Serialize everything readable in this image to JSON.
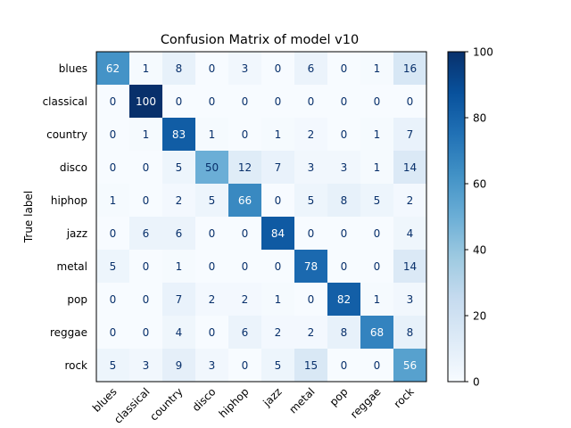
{
  "chart_data": {
    "type": "heatmap",
    "title": "Confusion Matrix of model v10",
    "ylabel": "True label",
    "xlabel": "",
    "categories": [
      "blues",
      "classical",
      "country",
      "disco",
      "hiphop",
      "jazz",
      "metal",
      "pop",
      "reggae",
      "rock"
    ],
    "matrix": [
      [
        62,
        1,
        8,
        0,
        3,
        0,
        6,
        0,
        1,
        16
      ],
      [
        0,
        100,
        0,
        0,
        0,
        0,
        0,
        0,
        0,
        0
      ],
      [
        0,
        1,
        83,
        1,
        0,
        1,
        2,
        0,
        1,
        7
      ],
      [
        0,
        0,
        5,
        50,
        12,
        7,
        3,
        3,
        1,
        14
      ],
      [
        1,
        0,
        2,
        5,
        66,
        0,
        5,
        8,
        5,
        2
      ],
      [
        0,
        6,
        6,
        0,
        0,
        84,
        0,
        0,
        0,
        4
      ],
      [
        5,
        0,
        1,
        0,
        0,
        0,
        78,
        0,
        0,
        14
      ],
      [
        0,
        0,
        7,
        2,
        2,
        1,
        0,
        82,
        1,
        3
      ],
      [
        0,
        0,
        4,
        0,
        6,
        2,
        2,
        8,
        68,
        8
      ],
      [
        5,
        3,
        9,
        3,
        0,
        5,
        15,
        0,
        0,
        56
      ]
    ],
    "colormap": "Blues",
    "value_range": [
      0,
      100
    ],
    "colorbar_ticks": [
      "0",
      "20",
      "40",
      "60",
      "80",
      "100"
    ],
    "grid": false,
    "legend": "colorbar-right"
  }
}
